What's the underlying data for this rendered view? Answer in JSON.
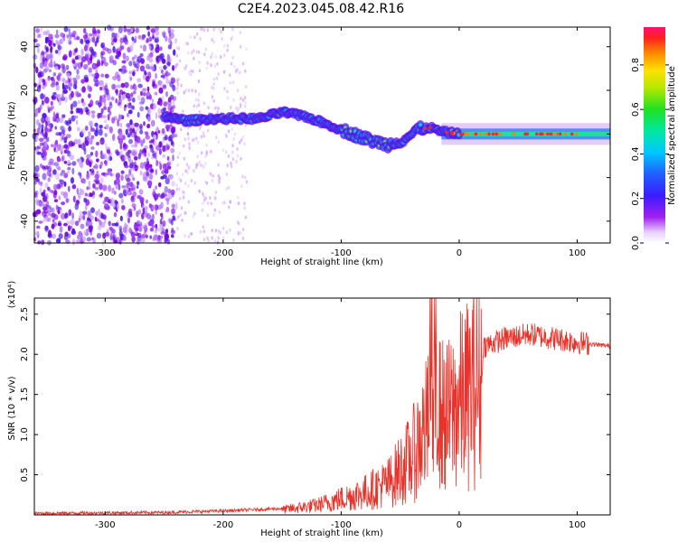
{
  "title": "C2E4.2023.045.08.42.R16",
  "chart_data": [
    {
      "type": "heatmap",
      "xlabel": "Height of straight line (km)",
      "ylabel": "Frequency (Hz)",
      "xlim": [
        -360,
        128
      ],
      "ylim": [
        -50,
        49
      ],
      "xticks": [
        -300,
        -200,
        -100,
        0,
        100
      ],
      "yticks": [
        -40,
        -20,
        0,
        20,
        40
      ],
      "colorbar": {
        "label": "Normalized spectral amplitude",
        "range": [
          0,
          0.97
        ],
        "ticks": [
          0.0,
          0.2,
          0.4,
          0.6,
          0.8
        ],
        "colormap": "rainbow"
      },
      "ridge": {
        "x": [
          -250,
          -230,
          -210,
          -190,
          -170,
          -150,
          -130,
          -110,
          -90,
          -75,
          -60,
          -45,
          -35,
          -25,
          -15,
          0,
          50,
          128
        ],
        "y": [
          8,
          6,
          7,
          7,
          7,
          10,
          8,
          4,
          0,
          -3,
          -5,
          -2,
          2,
          3,
          1,
          0,
          0,
          0
        ]
      },
      "noise_region_x": [
        -360,
        -240
      ]
    },
    {
      "type": "line",
      "xlabel": "Height of straight line (km)",
      "ylabel": "SNR (10 * v/v)",
      "y_multiplier": "(x10⁴)",
      "xlim": [
        -360,
        128
      ],
      "ylim": [
        0,
        2.7
      ],
      "xticks": [
        -300,
        -200,
        -100,
        0,
        100
      ],
      "yticks": [
        0.5,
        1.0,
        1.5,
        2.0,
        2.5
      ],
      "color": "#e8332a",
      "envelope": {
        "x": [
          -360,
          -250,
          -200,
          -150,
          -120,
          -100,
          -80,
          -60,
          -40,
          -30,
          -20,
          -10,
          0,
          20,
          40,
          60,
          80,
          100,
          128
        ],
        "y": [
          0.02,
          0.03,
          0.05,
          0.08,
          0.15,
          0.25,
          0.35,
          0.5,
          0.9,
          1.3,
          1.6,
          1.5,
          1.75,
          2.1,
          2.2,
          2.25,
          2.2,
          2.15,
          2.1
        ]
      }
    }
  ]
}
